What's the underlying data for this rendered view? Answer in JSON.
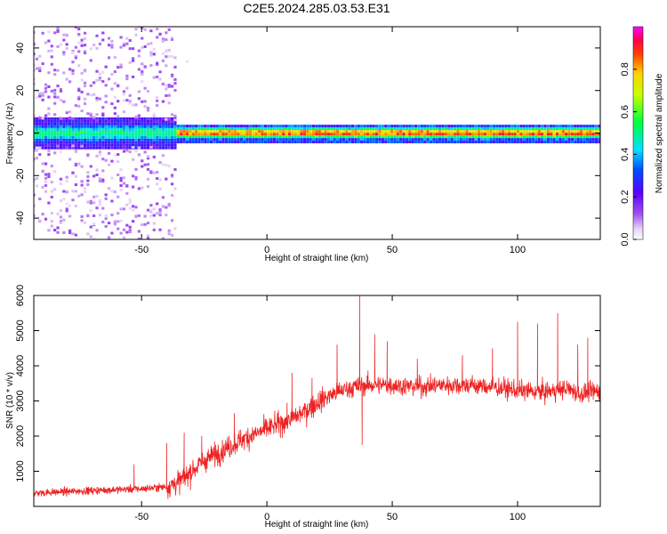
{
  "title": "C2E5.2024.285.03.53.E31",
  "colors": {
    "snr_line": "#ee2222",
    "axis": "#000000",
    "background": "#ffffff"
  },
  "chart_data": [
    {
      "type": "heatmap",
      "xlabel": "Height of straight line (km)",
      "ylabel": "Frequency (Hz)",
      "xlim": [
        -93,
        133
      ],
      "ylim": [
        -50,
        50
      ],
      "xticks": [
        "-50",
        "0",
        "50",
        "100"
      ],
      "xtick_values": [
        -50,
        0,
        50,
        100
      ],
      "yticks": [
        "-40",
        "-20",
        "0",
        "20",
        "40"
      ],
      "ytick_values": [
        -40,
        -20,
        0,
        20,
        40
      ],
      "colorbar": {
        "label": "Normalized spectral amplitude",
        "range": [
          0,
          1
        ],
        "ticks": [
          "0.0",
          "0.2",
          "0.4",
          "0.6",
          "0.8"
        ],
        "tick_values": [
          0.0,
          0.2,
          0.4,
          0.6,
          0.8
        ],
        "colormap": "rainbow (purple-blue-cyan-green-yellow-orange-red-magenta)"
      },
      "description": "Narrow band of high amplitude centered near 0 Hz (peaks ~0.8-1.0 for heights above -35 km); broad low-amplitude scatter across all frequencies below about -35 km."
    },
    {
      "type": "line",
      "xlabel": "Height of straight line (km)",
      "ylabel": "SNR (10 * v/v)",
      "xlim": [
        -93,
        133
      ],
      "ylim": [
        0,
        6000
      ],
      "xticks": [
        "-50",
        "0",
        "50",
        "100"
      ],
      "xtick_values": [
        -50,
        0,
        50,
        100
      ],
      "yticks": [
        "1000",
        "2000",
        "3000",
        "4000",
        "5000",
        "6000"
      ],
      "ytick_values": [
        1000,
        2000,
        3000,
        4000,
        5000,
        6000
      ],
      "series": [
        {
          "color": "#ee2222",
          "trend_x": [
            -93,
            -80,
            -60,
            -50,
            -40,
            -35,
            -30,
            -25,
            -20,
            -15,
            -10,
            -5,
            0,
            5,
            10,
            15,
            20,
            25,
            30,
            35,
            40,
            45,
            50,
            60,
            70,
            80,
            90,
            100,
            110,
            120,
            125,
            133
          ],
          "trend_y": [
            380,
            420,
            480,
            500,
            560,
            700,
            1000,
            1300,
            1500,
            1700,
            1900,
            2050,
            2200,
            2350,
            2500,
            2700,
            2950,
            3150,
            3300,
            3400,
            3450,
            3450,
            3450,
            3400,
            3450,
            3450,
            3400,
            3300,
            3250,
            3350,
            3200,
            3300
          ],
          "spikes_x": [
            -53,
            -40,
            -33,
            -26,
            -13,
            10,
            18,
            28,
            37,
            38,
            43,
            48,
            60,
            78,
            90,
            100,
            108,
            116,
            124,
            128
          ],
          "spikes_y": [
            1200,
            1800,
            2100,
            2000,
            2650,
            3800,
            3650,
            4600,
            6000,
            1750,
            4900,
            4700,
            4200,
            4300,
            4500,
            5250,
            5200,
            5500,
            4600,
            4800
          ]
        }
      ]
    }
  ]
}
